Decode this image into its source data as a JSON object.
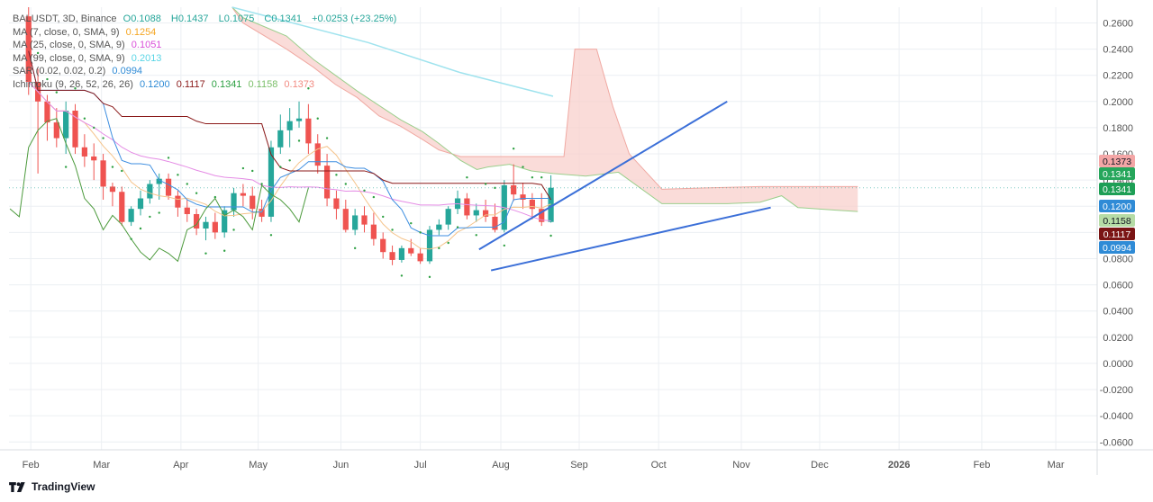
{
  "header": {
    "symbol": "BALUSDT, 3D, Binance",
    "ohlc": {
      "O": "0.1088",
      "H": "0.1437",
      "L": "0.1075",
      "C": "0.1341",
      "change": "+0.0253 (+23.25%)"
    },
    "indicators": [
      {
        "label": "MA (7, close, 0, SMA, 9)",
        "value": "0.1254",
        "color": "#f5a623"
      },
      {
        "label": "MA (25, close, 0, SMA, 9)",
        "value": "0.1051",
        "color": "#d94fd9"
      },
      {
        "label": "MA (99, close, 0, SMA, 9)",
        "value": "0.2013",
        "color": "#5ad5e6"
      },
      {
        "label": "SAR (0.02, 0.02, 0.2)",
        "value": "0.0994",
        "color": "#2f8bd6"
      }
    ],
    "ichimoku": {
      "label": "Ichimoku (9, 26, 52, 26, 26)",
      "values": [
        "0.1200",
        "0.1117",
        "0.1341",
        "0.1158",
        "0.1373"
      ],
      "colors": [
        "#2f8bd6",
        "#8b1a1a",
        "#2ea043",
        "#7bbf6a",
        "#f28b82"
      ]
    }
  },
  "footer": {
    "brand": "TradingView"
  },
  "price_tags": [
    {
      "value": "0.1373",
      "bg": "#f4a6a6",
      "fg": "#131722"
    },
    {
      "value": "0.1341",
      "bg": "#26a65b",
      "fg": "#ffffff"
    },
    {
      "value": "0.1341",
      "bg": "#1e9f56",
      "fg": "#ffffff"
    },
    {
      "value": "0.1200",
      "bg": "#2f8bd6",
      "fg": "#ffffff"
    },
    {
      "value": "0.1158",
      "bg": "#b6dca6",
      "fg": "#131722"
    },
    {
      "value": "0.1117",
      "bg": "#7a1414",
      "fg": "#ffffff"
    },
    {
      "value": "0.0994",
      "bg": "#2f8bd6",
      "fg": "#ffffff"
    }
  ],
  "chart_data": {
    "type": "candlestick",
    "title": "",
    "y_axis": {
      "ticks": [
        "0.2600",
        "0.2400",
        "0.2200",
        "0.2000",
        "0.1800",
        "0.1600",
        "0.1400",
        "0.1200",
        "0.1000",
        "0.0800",
        "0.0600",
        "0.0400",
        "0.0200",
        "0.0000",
        "-0.0200",
        "-0.0400",
        "-0.0600"
      ],
      "range": [
        -0.066,
        0.272
      ]
    },
    "x_axis": {
      "labels": [
        "Feb",
        "Mar",
        "Apr",
        "May",
        "Jun",
        "Jul",
        "Aug",
        "Sep",
        "Oct",
        "Nov",
        "Dec",
        "2026",
        "Feb",
        "Mar"
      ]
    },
    "colors": {
      "up": "#26a69a",
      "down": "#ef5350",
      "cloud": "#f8d0cc",
      "trendline": "#3b6fd8"
    },
    "candles": [
      [
        0.265,
        0.272,
        0.205,
        0.215
      ],
      [
        0.215,
        0.225,
        0.145,
        0.2
      ],
      [
        0.2,
        0.205,
        0.17,
        0.184
      ],
      [
        0.184,
        0.195,
        0.165,
        0.172
      ],
      [
        0.172,
        0.2,
        0.16,
        0.193
      ],
      [
        0.193,
        0.198,
        0.16,
        0.165
      ],
      [
        0.165,
        0.175,
        0.15,
        0.158
      ],
      [
        0.158,
        0.168,
        0.14,
        0.155
      ],
      [
        0.155,
        0.16,
        0.125,
        0.135
      ],
      [
        0.135,
        0.138,
        0.12,
        0.131
      ],
      [
        0.131,
        0.135,
        0.105,
        0.108
      ],
      [
        0.108,
        0.12,
        0.105,
        0.118
      ],
      [
        0.118,
        0.132,
        0.113,
        0.126
      ],
      [
        0.126,
        0.14,
        0.122,
        0.137
      ],
      [
        0.137,
        0.145,
        0.125,
        0.141
      ],
      [
        0.141,
        0.145,
        0.125,
        0.128
      ],
      [
        0.128,
        0.132,
        0.112,
        0.119
      ],
      [
        0.119,
        0.125,
        0.108,
        0.114
      ],
      [
        0.114,
        0.118,
        0.098,
        0.103
      ],
      [
        0.103,
        0.112,
        0.094,
        0.108
      ],
      [
        0.108,
        0.115,
        0.095,
        0.1
      ],
      [
        0.1,
        0.12,
        0.096,
        0.117
      ],
      [
        0.117,
        0.134,
        0.112,
        0.13
      ],
      [
        0.13,
        0.137,
        0.12,
        0.128
      ],
      [
        0.128,
        0.135,
        0.11,
        0.118
      ],
      [
        0.118,
        0.125,
        0.108,
        0.112
      ],
      [
        0.112,
        0.17,
        0.108,
        0.165
      ],
      [
        0.165,
        0.19,
        0.16,
        0.178
      ],
      [
        0.178,
        0.195,
        0.165,
        0.185
      ],
      [
        0.185,
        0.2,
        0.18,
        0.187
      ],
      [
        0.187,
        0.198,
        0.16,
        0.168
      ],
      [
        0.168,
        0.175,
        0.145,
        0.151
      ],
      [
        0.151,
        0.16,
        0.12,
        0.126
      ],
      [
        0.126,
        0.132,
        0.11,
        0.118
      ],
      [
        0.118,
        0.125,
        0.1,
        0.102
      ],
      [
        0.102,
        0.118,
        0.098,
        0.113
      ],
      [
        0.113,
        0.12,
        0.1,
        0.106
      ],
      [
        0.106,
        0.115,
        0.09,
        0.095
      ],
      [
        0.095,
        0.1,
        0.08,
        0.085
      ],
      [
        0.085,
        0.09,
        0.075,
        0.079
      ],
      [
        0.079,
        0.09,
        0.077,
        0.088
      ],
      [
        0.088,
        0.095,
        0.082,
        0.084
      ],
      [
        0.084,
        0.088,
        0.076,
        0.078
      ],
      [
        0.078,
        0.105,
        0.076,
        0.102
      ],
      [
        0.102,
        0.11,
        0.098,
        0.106
      ],
      [
        0.106,
        0.12,
        0.102,
        0.118
      ],
      [
        0.118,
        0.132,
        0.114,
        0.126
      ],
      [
        0.126,
        0.13,
        0.11,
        0.113
      ],
      [
        0.113,
        0.122,
        0.108,
        0.117
      ],
      [
        0.117,
        0.125,
        0.108,
        0.112
      ],
      [
        0.112,
        0.122,
        0.1,
        0.102
      ],
      [
        0.102,
        0.14,
        0.1,
        0.136
      ],
      [
        0.136,
        0.152,
        0.124,
        0.129
      ],
      [
        0.129,
        0.138,
        0.118,
        0.125
      ],
      [
        0.125,
        0.13,
        0.11,
        0.118
      ],
      [
        0.118,
        0.13,
        0.105,
        0.108
      ],
      [
        0.108,
        0.1437,
        0.1075,
        0.1341
      ]
    ],
    "ma99": [
      [
        0.205,
        0.272
      ],
      [
        0.33,
        0.245
      ],
      [
        0.415,
        0.222
      ],
      [
        0.5,
        0.204
      ]
    ],
    "cloud_upper": [
      [
        0.205,
        0.272
      ],
      [
        0.215,
        0.26
      ],
      [
        0.255,
        0.24
      ],
      [
        0.28,
        0.226
      ],
      [
        0.3,
        0.213
      ],
      [
        0.32,
        0.203
      ],
      [
        0.34,
        0.189
      ],
      [
        0.36,
        0.181
      ],
      [
        0.38,
        0.171
      ],
      [
        0.395,
        0.163
      ],
      [
        0.415,
        0.158
      ],
      [
        0.44,
        0.158
      ],
      [
        0.47,
        0.158
      ],
      [
        0.51,
        0.158
      ],
      [
        0.52,
        0.24
      ],
      [
        0.54,
        0.24
      ],
      [
        0.555,
        0.196
      ],
      [
        0.57,
        0.16
      ],
      [
        0.6,
        0.133
      ],
      [
        0.64,
        0.134
      ],
      [
        0.69,
        0.135
      ],
      [
        0.74,
        0.135
      ],
      [
        0.78,
        0.135
      ]
    ],
    "cloud_lower": [
      [
        0.205,
        0.272
      ],
      [
        0.215,
        0.264
      ],
      [
        0.255,
        0.25
      ],
      [
        0.28,
        0.232
      ],
      [
        0.3,
        0.22
      ],
      [
        0.32,
        0.208
      ],
      [
        0.34,
        0.197
      ],
      [
        0.36,
        0.186
      ],
      [
        0.38,
        0.177
      ],
      [
        0.395,
        0.168
      ],
      [
        0.415,
        0.155
      ],
      [
        0.43,
        0.148
      ],
      [
        0.44,
        0.15
      ],
      [
        0.46,
        0.152
      ],
      [
        0.48,
        0.147
      ],
      [
        0.5,
        0.145
      ],
      [
        0.53,
        0.143
      ],
      [
        0.56,
        0.146
      ],
      [
        0.6,
        0.122
      ],
      [
        0.63,
        0.122
      ],
      [
        0.66,
        0.122
      ],
      [
        0.69,
        0.123
      ],
      [
        0.71,
        0.128
      ],
      [
        0.725,
        0.119
      ],
      [
        0.76,
        0.117
      ],
      [
        0.78,
        0.116
      ]
    ],
    "trendline_upper": [
      [
        0.432,
        0.087
      ],
      [
        0.66,
        0.2
      ]
    ],
    "trendline_lower": [
      [
        0.443,
        0.071
      ],
      [
        0.7,
        0.119
      ]
    ]
  }
}
